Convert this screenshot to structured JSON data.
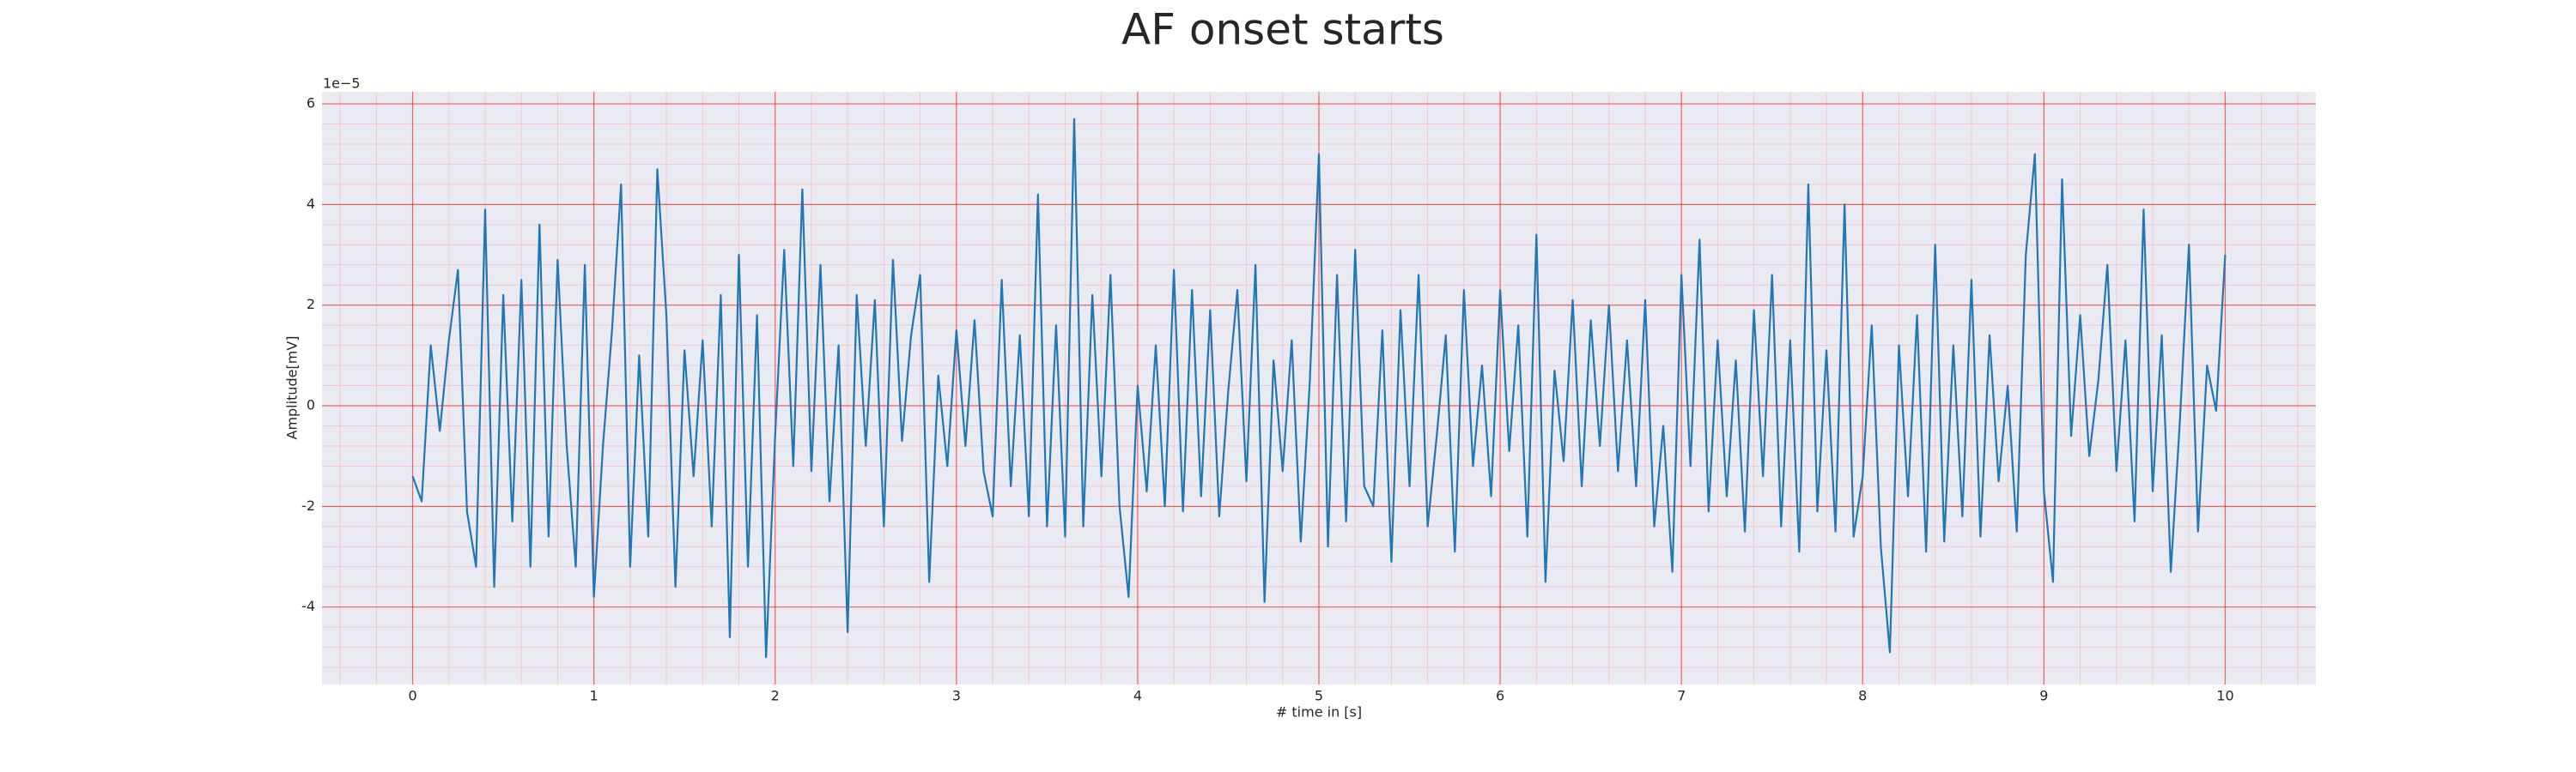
{
  "chart_data": {
    "type": "line",
    "title": "AF onset starts",
    "xlabel": "# time in [s]",
    "ylabel": "Amplitude[mV]",
    "y_offset_label": "1e−5",
    "x": [
      0,
      0.05,
      0.1,
      0.15,
      0.2,
      0.25,
      0.3,
      0.35,
      0.4,
      0.45,
      0.5,
      0.55,
      0.6,
      0.65,
      0.7,
      0.75,
      0.8,
      0.85,
      0.9,
      0.95,
      1,
      1.05,
      1.1,
      1.15,
      1.2,
      1.25,
      1.3,
      1.35,
      1.4,
      1.45,
      1.5,
      1.55,
      1.6,
      1.65,
      1.7,
      1.75,
      1.8,
      1.85,
      1.9,
      1.95,
      2,
      2.05,
      2.1,
      2.15,
      2.2,
      2.25,
      2.3,
      2.35,
      2.4,
      2.45,
      2.5,
      2.55,
      2.6,
      2.65,
      2.7,
      2.75,
      2.8,
      2.85,
      2.9,
      2.95,
      3,
      3.05,
      3.1,
      3.15,
      3.2,
      3.25,
      3.3,
      3.35,
      3.4,
      3.45,
      3.5,
      3.55,
      3.6,
      3.65,
      3.7,
      3.75,
      3.8,
      3.85,
      3.9,
      3.95,
      4,
      4.05,
      4.1,
      4.15,
      4.2,
      4.25,
      4.3,
      4.35,
      4.4,
      4.45,
      4.5,
      4.55,
      4.6,
      4.65,
      4.7,
      4.75,
      4.8,
      4.85,
      4.9,
      4.95,
      5,
      5.05,
      5.1,
      5.15,
      5.2,
      5.25,
      5.3,
      5.35,
      5.4,
      5.45,
      5.5,
      5.55,
      5.6,
      5.65,
      5.7,
      5.75,
      5.8,
      5.85,
      5.9,
      5.95,
      6,
      6.05,
      6.1,
      6.15,
      6.2,
      6.25,
      6.3,
      6.35,
      6.4,
      6.45,
      6.5,
      6.55,
      6.6,
      6.65,
      6.7,
      6.75,
      6.8,
      6.85,
      6.9,
      6.95,
      7,
      7.05,
      7.1,
      7.15,
      7.2,
      7.25,
      7.3,
      7.35,
      7.4,
      7.45,
      7.5,
      7.55,
      7.6,
      7.65,
      7.7,
      7.75,
      7.8,
      7.85,
      7.9,
      7.95,
      8,
      8.05,
      8.1,
      8.15,
      8.2,
      8.25,
      8.3,
      8.35,
      8.4,
      8.45,
      8.5,
      8.55,
      8.6,
      8.65,
      8.7,
      8.75,
      8.8,
      8.85,
      8.9,
      8.95,
      9,
      9.05,
      9.1,
      9.15,
      9.2,
      9.25,
      9.3,
      9.35,
      9.4,
      9.45,
      9.5,
      9.55,
      9.6,
      9.65,
      9.7,
      9.75,
      9.8,
      9.85,
      9.9,
      9.95,
      10
    ],
    "series": [
      {
        "color": "#1f77b4",
        "values": [
          -1.4,
          -1.9,
          1.2,
          -0.5,
          1.3,
          2.7,
          -2.1,
          -3.2,
          3.9,
          -3.6,
          2.2,
          -2.3,
          2.5,
          -3.2,
          3.6,
          -2.6,
          2.9,
          -0.8,
          -3.2,
          2.8,
          -3.8,
          -0.8,
          1.5,
          4.4,
          -3.2,
          1.0,
          -2.6,
          4.7,
          1.8,
          -3.6,
          1.1,
          -1.4,
          1.3,
          -2.4,
          2.2,
          -4.6,
          3.0,
          -3.2,
          1.8,
          -5.0,
          -0.6,
          3.1,
          -1.2,
          4.3,
          -1.3,
          2.8,
          -1.9,
          1.2,
          -4.5,
          2.2,
          -0.8,
          2.1,
          -2.4,
          2.9,
          -0.7,
          1.4,
          2.6,
          -3.5,
          0.6,
          -1.2,
          1.5,
          -0.8,
          1.7,
          -1.3,
          -2.2,
          2.5,
          -1.6,
          1.4,
          -2.2,
          4.2,
          -2.4,
          1.6,
          -2.6,
          5.7,
          -2.4,
          2.2,
          -1.4,
          2.6,
          -2.0,
          -3.8,
          0.4,
          -1.7,
          1.2,
          -2.0,
          2.7,
          -2.1,
          2.3,
          -1.8,
          1.9,
          -2.2,
          0.3,
          2.3,
          -1.5,
          2.8,
          -3.9,
          0.9,
          -1.3,
          1.3,
          -2.7,
          0.5,
          5.0,
          -2.8,
          2.6,
          -2.3,
          3.1,
          -1.6,
          -2.0,
          1.5,
          -3.1,
          1.9,
          -1.6,
          2.6,
          -2.4,
          -0.6,
          1.4,
          -2.9,
          2.3,
          -1.2,
          0.8,
          -1.8,
          2.3,
          -0.9,
          1.6,
          -2.6,
          3.4,
          -3.5,
          0.7,
          -1.1,
          2.1,
          -1.6,
          1.7,
          -0.8,
          2.0,
          -1.3,
          1.3,
          -1.6,
          2.1,
          -2.4,
          -0.4,
          -3.3,
          2.6,
          -1.2,
          3.3,
          -2.1,
          1.3,
          -1.8,
          0.9,
          -2.5,
          1.9,
          -1.4,
          2.6,
          -2.4,
          1.3,
          -2.9,
          4.4,
          -2.1,
          1.1,
          -2.5,
          4.0,
          -2.6,
          -1.4,
          1.6,
          -2.8,
          -4.9,
          1.2,
          -1.8,
          1.8,
          -2.9,
          3.2,
          -2.7,
          1.2,
          -2.2,
          2.5,
          -2.6,
          1.4,
          -1.5,
          0.4,
          -2.5,
          3.0,
          5.0,
          -1.7,
          -3.5,
          4.5,
          -0.6,
          1.8,
          -1.0,
          0.5,
          2.8,
          -1.3,
          1.3,
          -2.3,
          3.9,
          -1.7,
          1.4,
          -3.3,
          -0.3,
          3.2,
          -2.5,
          0.8,
          -0.1,
          3.0
        ]
      }
    ],
    "xlim": [
      -0.5,
      10.5
    ],
    "ylim": [
      -5.54,
      6.24
    ],
    "xticks": [
      0,
      1,
      2,
      3,
      4,
      5,
      6,
      7,
      8,
      9,
      10
    ],
    "yticks": [
      -4,
      -2,
      0,
      2,
      4,
      6
    ],
    "grid": true,
    "grid_color": "#ff0000",
    "minor_grid": true,
    "minor_grid_color": "#ff9999",
    "background": "#eaeaf2"
  }
}
